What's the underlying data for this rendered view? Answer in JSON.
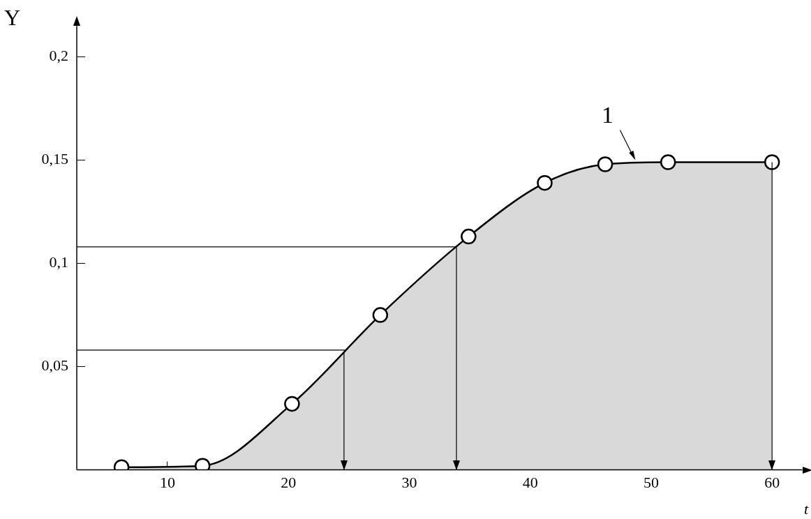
{
  "chart_data": {
    "type": "area",
    "xlabel": "t",
    "ylabel": "Y",
    "series": [
      {
        "color": "#000000",
        "x": [
          6.2,
          12.9,
          20.3,
          27.6,
          34.9,
          41.2,
          46.2,
          51.4,
          60
        ],
        "values": [
          0.0013,
          0.002,
          0.032,
          0.075,
          0.113,
          0.139,
          0.148,
          0.149,
          0.149
        ]
      }
    ],
    "xlim": [
      2.5,
      62.5
    ],
    "xticks": [
      10,
      20,
      30,
      40,
      50,
      60
    ],
    "ylim": [
      0,
      0.215
    ],
    "yticks": [
      {
        "value": 0.05,
        "label": "0,05"
      },
      {
        "value": 0.1,
        "label": "0,1"
      },
      {
        "value": 0.15,
        "label": "0,15"
      },
      {
        "value": 0.2,
        "label": "0,2"
      }
    ],
    "ref_lines": [
      {
        "axis": "y",
        "value": 0.108
      },
      {
        "axis": "y",
        "value": 0.058
      },
      {
        "axis": "x",
        "value": 33.9
      },
      {
        "axis": "x",
        "value": 24.6
      },
      {
        "axis": "x",
        "value": 60
      }
    ],
    "annotations": [
      {
        "text": "1",
        "x": 48.7,
        "y": 0.149
      }
    ],
    "marker": "circle",
    "grid": false,
    "legend": false
  }
}
